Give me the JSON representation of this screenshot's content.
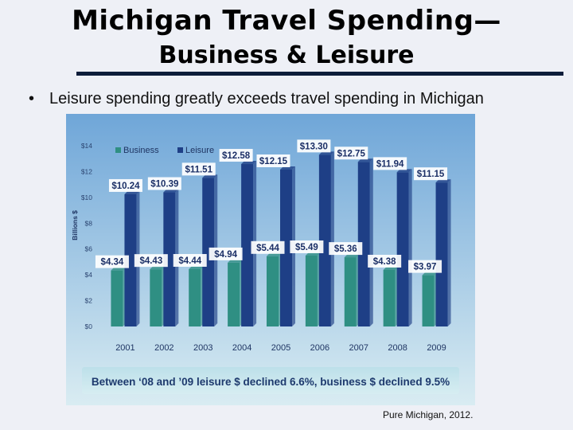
{
  "slide": {
    "title_line1": "Michigan Travel Spending—",
    "title_line2": "Business & Leisure",
    "bullet_symbol": "•",
    "bullet_text": "Leisure spending greatly exceeds travel spending in Michigan",
    "source": "Pure Michigan, 2012."
  },
  "colors": {
    "business": "#2f8f83",
    "leisure": "#1e3f86",
    "chart_bg_top": "#6fa6d8",
    "chart_bg_bottom": "#d9ecf2"
  },
  "chart_data": {
    "type": "bar",
    "categories": [
      "2001",
      "2002",
      "2003",
      "2004",
      "2005",
      "2006",
      "2007",
      "2008",
      "2009"
    ],
    "series": [
      {
        "name": "Business",
        "values": [
          4.34,
          4.43,
          4.44,
          4.94,
          5.44,
          5.49,
          5.36,
          4.38,
          3.97
        ],
        "labels": [
          "$4.34",
          "$4.43",
          "$4.44",
          "$4.94",
          "$5.44",
          "$5.49",
          "$5.36",
          "$4.38",
          "$3.97"
        ]
      },
      {
        "name": "Leisure",
        "values": [
          10.24,
          10.39,
          11.51,
          12.58,
          12.15,
          13.3,
          12.75,
          11.94,
          11.15
        ],
        "labels": [
          "$10.24",
          "$10.39",
          "$11.51",
          "$12.58",
          "$12.15",
          "$13.30",
          "$12.75",
          "$11.94",
          "$11.15"
        ]
      }
    ],
    "ylabel": "Billions $",
    "yticks": [
      "$0",
      "$2",
      "$4",
      "$6",
      "$8",
      "$10",
      "$12",
      "$14"
    ],
    "ylim": [
      0,
      14
    ],
    "legend_position": "top-left",
    "grid": false,
    "annotation": "Between ‘08 and ’09 leisure $ declined 6.6%, business $ declined 9.5%"
  }
}
